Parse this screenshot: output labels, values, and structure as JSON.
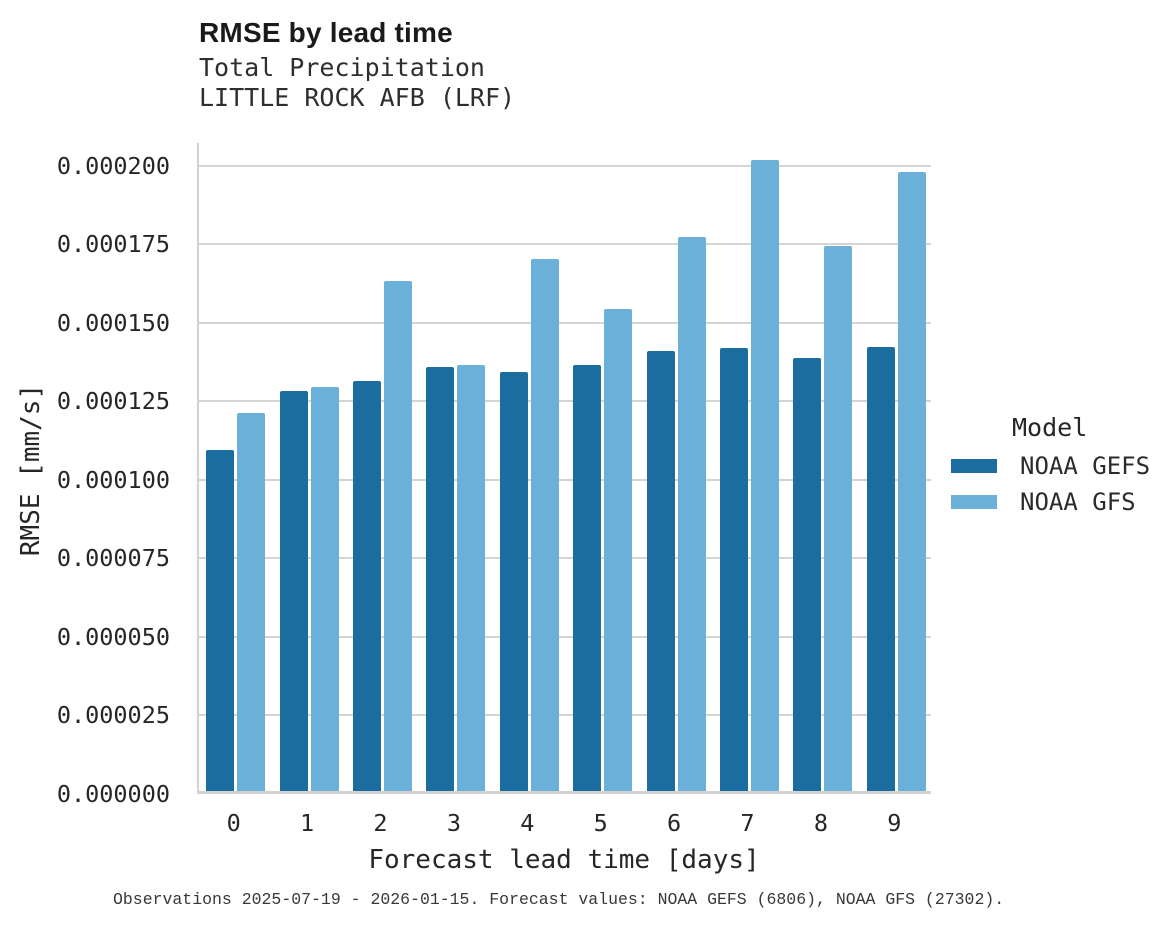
{
  "header": {
    "title": "RMSE by lead time",
    "subtitle1": "Total Precipitation",
    "subtitle2": "LITTLE ROCK AFB (LRF)"
  },
  "caption": "Observations 2025-07-19 - 2026-01-15. Forecast values: NOAA GEFS (6806), NOAA GFS (27302).",
  "legend": {
    "title": "Model",
    "entries": [
      {
        "label": "NOAA GEFS",
        "color": "#1A6D9E"
      },
      {
        "label": "NOAA GFS",
        "color": "#6BB0D8"
      }
    ]
  },
  "colors": {
    "gefs_bar": "#1A6D9E",
    "gfs_bar": "#6BB0D8",
    "gridline": "#D4D4D4",
    "axis_line": "#D2D2D2",
    "text": "#262626"
  },
  "chart_data": {
    "type": "bar",
    "title": "RMSE by lead time",
    "subtitle": [
      "Total Precipitation",
      "LITTLE ROCK AFB (LRF)"
    ],
    "xlabel": "Forecast lead time [days]",
    "ylabel": "RMSE [mm/s]",
    "categories": [
      "0",
      "1",
      "2",
      "3",
      "4",
      "5",
      "6",
      "7",
      "8",
      "9"
    ],
    "series": [
      {
        "name": "NOAA GEFS",
        "color": "#1A6D9E",
        "values": [
          0.0001085,
          0.0001275,
          0.0001305,
          0.000135,
          0.0001335,
          0.0001355,
          0.00014,
          0.000141,
          0.000138,
          0.0001415
        ]
      },
      {
        "name": "NOAA GFS",
        "color": "#6BB0D8",
        "values": [
          0.0001205,
          0.0001285,
          0.0001625,
          0.0001355,
          0.0001695,
          0.0001535,
          0.0001765,
          0.000201,
          0.0001735,
          0.000197
        ]
      }
    ],
    "ylim": [
      0,
      0.0002073
    ],
    "yticks": [
      0,
      2.5e-05,
      5e-05,
      7.5e-05,
      0.0001,
      0.000125,
      0.00015,
      0.000175,
      0.0002
    ],
    "ytick_labels": [
      "0.000000",
      "0.000025",
      "0.000050",
      "0.000075",
      "0.000100",
      "0.000125",
      "0.000150",
      "0.000175",
      "0.000200"
    ],
    "grid": true,
    "legend_title": "Model",
    "legend_position": "right"
  }
}
